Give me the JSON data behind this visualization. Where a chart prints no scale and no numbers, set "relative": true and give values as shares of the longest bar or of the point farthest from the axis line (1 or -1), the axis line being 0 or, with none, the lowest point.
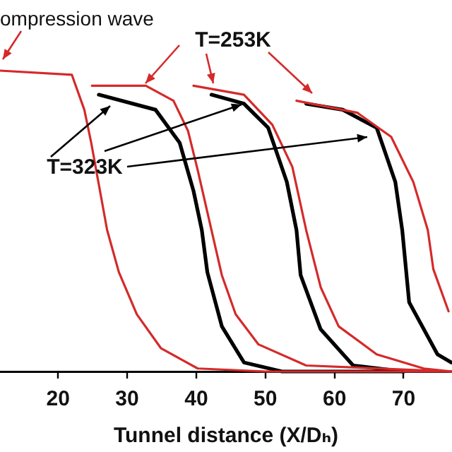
{
  "chart_data": {
    "type": "line",
    "relative": true,
    "xlabel": "Tunnel distance (X/Dₕ)",
    "annotations": [
      "ompression wave",
      "T=253K",
      "T=323K"
    ],
    "xlim": [
      11.6,
      77
    ],
    "xticks": [
      20,
      30,
      40,
      50,
      60,
      70
    ],
    "grid": false,
    "legend": false,
    "marker": "none",
    "line_style": "solid",
    "series": [
      {
        "color": "#d42a2a",
        "x": [
          11.6,
          22.0,
          23.8,
          24.8,
          27.1,
          28.8,
          31.4,
          34.9,
          40.2,
          50,
          77
        ],
        "values": [
          1.0,
          0.986,
          0.87,
          0.76,
          0.47,
          0.33,
          0.19,
          0.077,
          0.01,
          0,
          0
        ]
      },
      {
        "color": "#d42a2a",
        "x": [
          24.9,
          32.7,
          36.7,
          38.8,
          40.2,
          42.2,
          43.7,
          45.7,
          49.0,
          55.9,
          77
        ],
        "values": [
          0.95,
          0.95,
          0.9,
          0.8,
          0.67,
          0.47,
          0.32,
          0.19,
          0.09,
          0.02,
          0
        ]
      },
      {
        "color": "#000000",
        "x": [
          25.9,
          34.1,
          37.6,
          39.6,
          40.8,
          41.6,
          43.7,
          46.9,
          52.4,
          70
        ],
        "values": [
          0.92,
          0.87,
          0.76,
          0.6,
          0.47,
          0.33,
          0.15,
          0.03,
          0,
          0
        ]
      },
      {
        "color": "#d42a2a",
        "x": [
          39.6,
          46.9,
          51.0,
          53.9,
          55.9,
          58.0,
          60.6,
          66.1,
          72.9,
          77
        ],
        "values": [
          0.95,
          0.92,
          0.82,
          0.68,
          0.47,
          0.28,
          0.15,
          0.057,
          0.01,
          0
        ]
      },
      {
        "color": "#000000",
        "x": [
          42.2,
          46.9,
          50.4,
          53.1,
          54.5,
          55.1,
          58.0,
          62.7,
          70
        ],
        "values": [
          0.92,
          0.89,
          0.81,
          0.63,
          0.47,
          0.32,
          0.14,
          0.02,
          0
        ]
      },
      {
        "color": "#d42a2a",
        "x": [
          54.5,
          63.3,
          68.2,
          71.4,
          73.5,
          74.3,
          76.5
        ],
        "values": [
          0.9,
          0.86,
          0.78,
          0.63,
          0.47,
          0.34,
          0.2
        ]
      },
      {
        "color": "#000000",
        "x": [
          55.9,
          61.2,
          66.1,
          68.8,
          69.8,
          70.8,
          74.9,
          76.9
        ],
        "values": [
          0.89,
          0.87,
          0.81,
          0.63,
          0.47,
          0.23,
          0.057,
          0.03
        ]
      }
    ]
  }
}
